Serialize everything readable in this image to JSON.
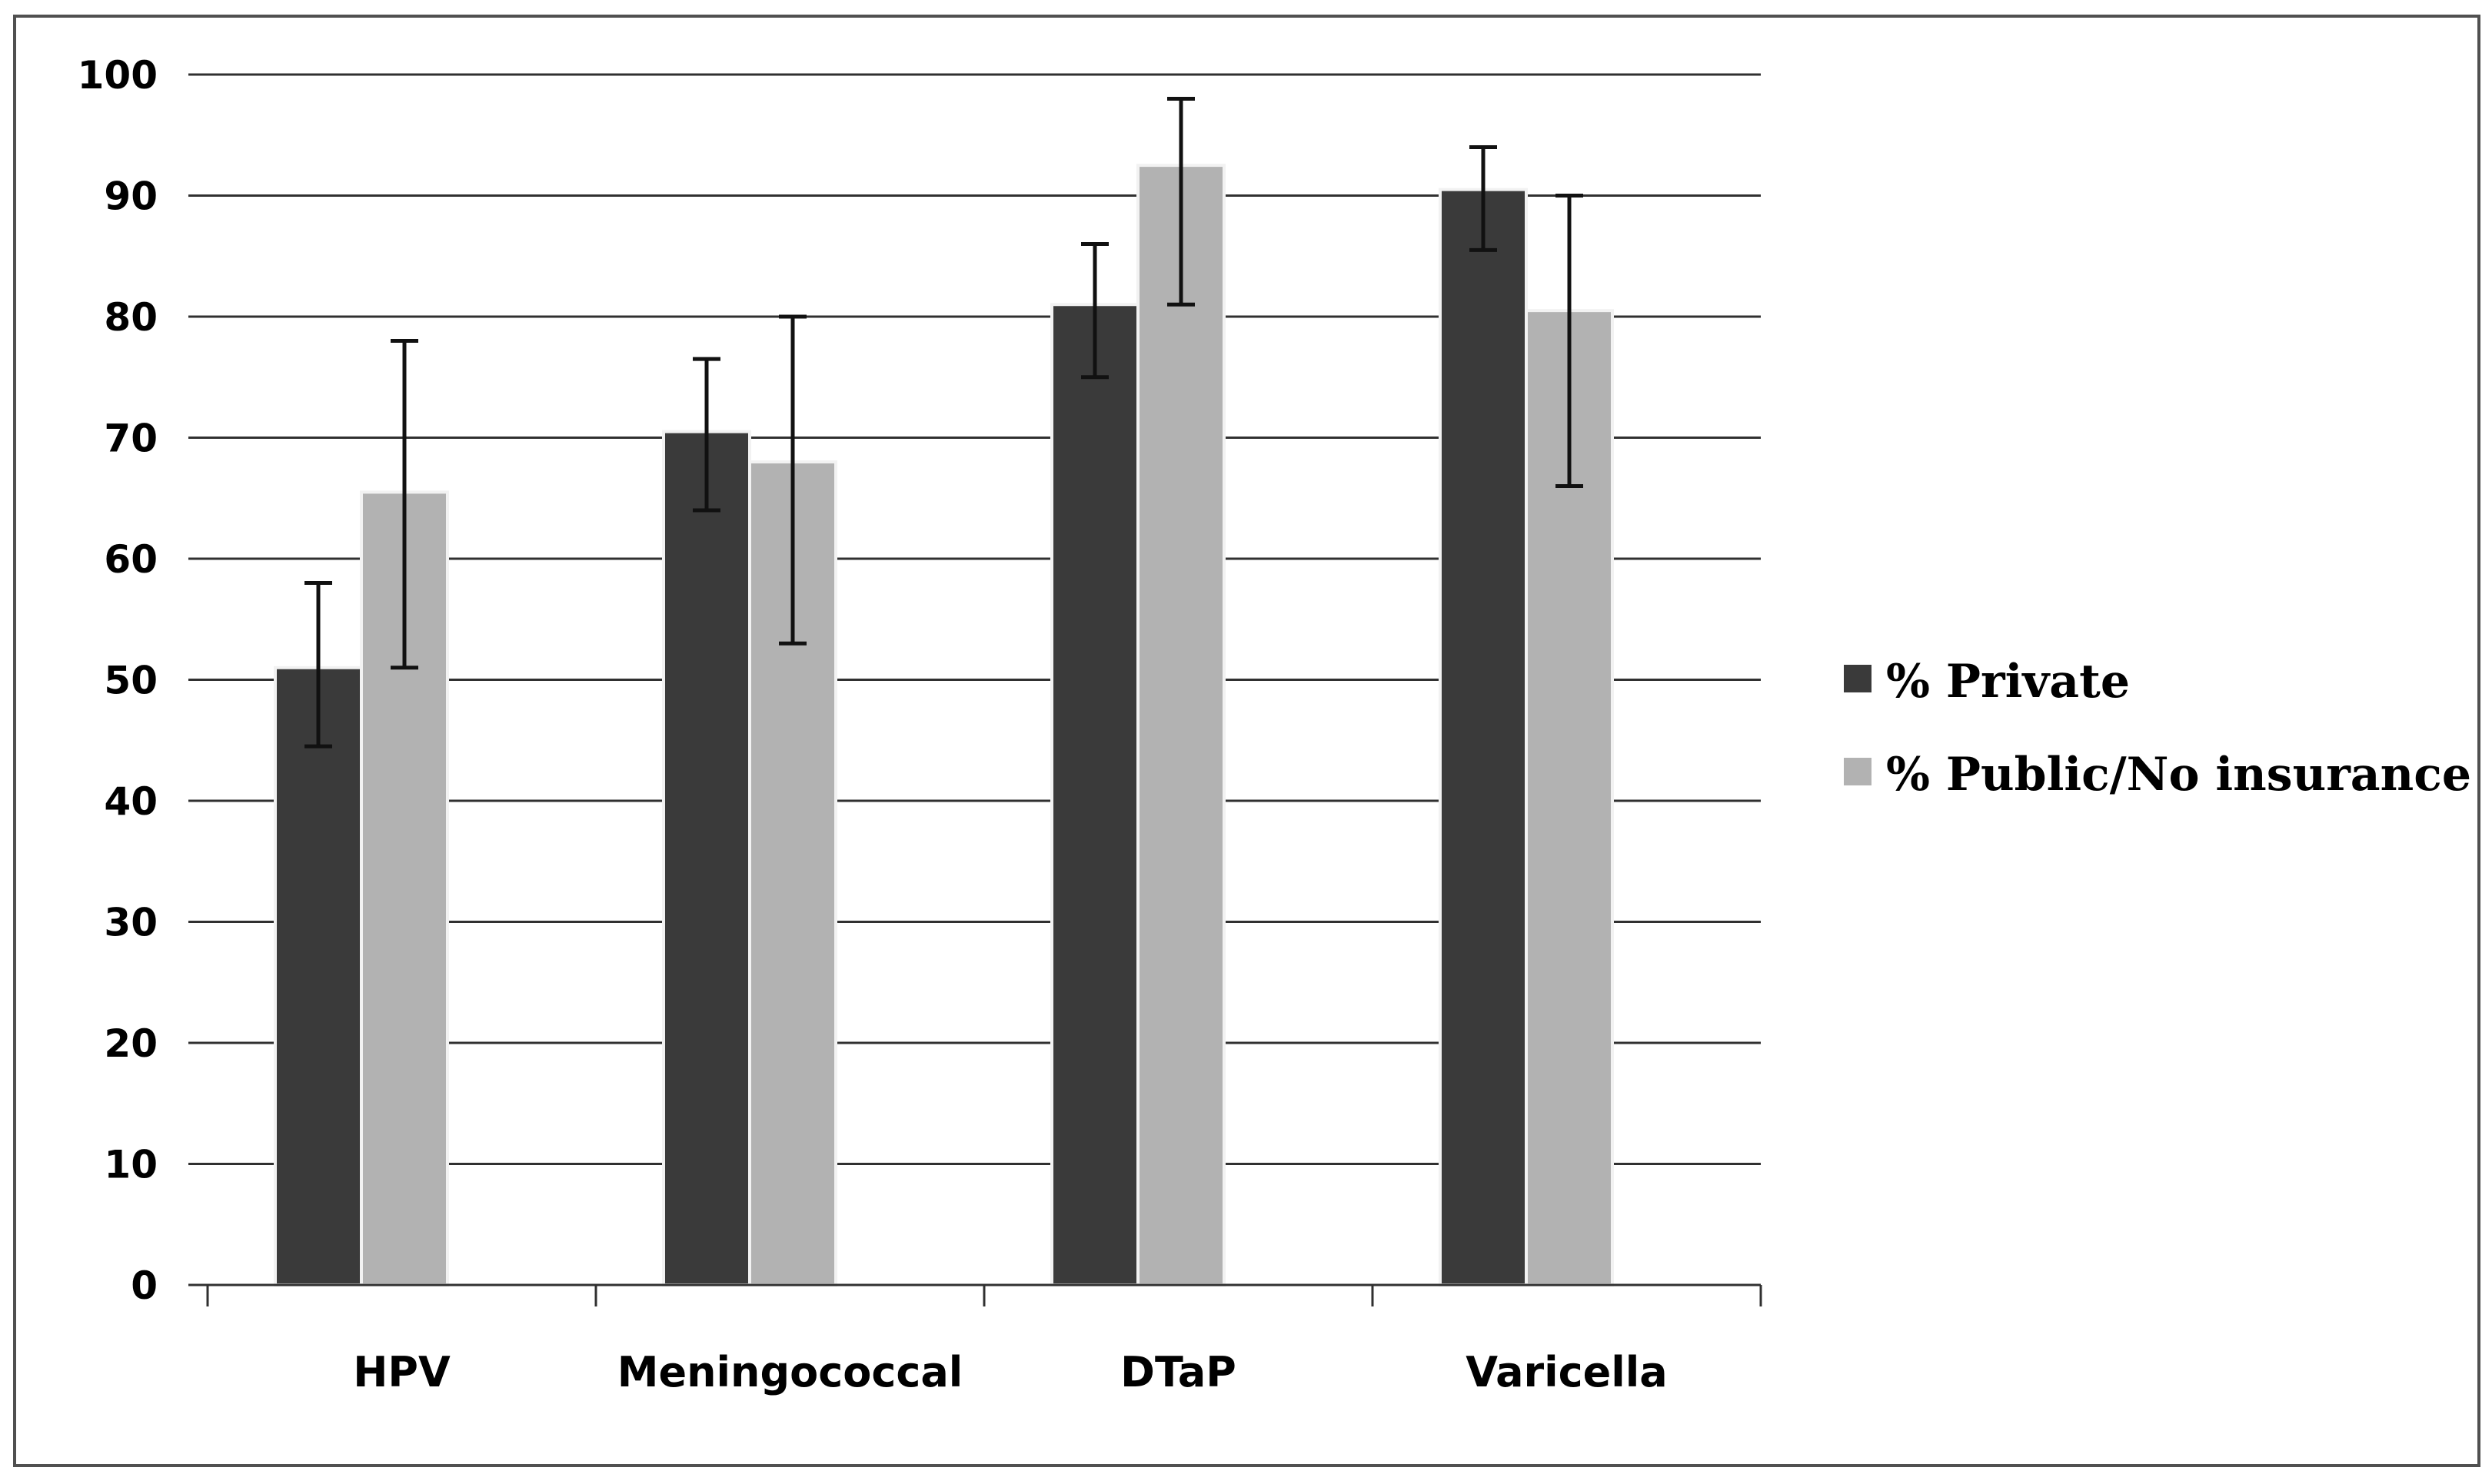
{
  "chart_data": {
    "type": "bar",
    "title": "",
    "xlabel": "",
    "ylabel": "",
    "ylim": [
      0,
      100
    ],
    "yticks": [
      "0",
      "10",
      "20",
      "30",
      "40",
      "50",
      "60",
      "70",
      "80",
      "90",
      "100"
    ],
    "grid": true,
    "legend_position": "right",
    "categories": [
      "HPV",
      "Meningococcal",
      "DTaP",
      "Varicella"
    ],
    "series": [
      {
        "name": "% Private",
        "color": "#3a3a3a",
        "values": [
          51,
          70.5,
          81,
          90.5
        ],
        "error_low": [
          44.5,
          64,
          75,
          85.5
        ],
        "error_high": [
          58,
          76.5,
          86,
          94
        ]
      },
      {
        "name": "% Public/No insurance",
        "color": "#b2b2b2",
        "values": [
          65.5,
          68,
          92.5,
          80.5
        ],
        "error_low": [
          51,
          53,
          81,
          66
        ],
        "error_high": [
          78,
          80,
          98,
          90
        ]
      }
    ]
  }
}
